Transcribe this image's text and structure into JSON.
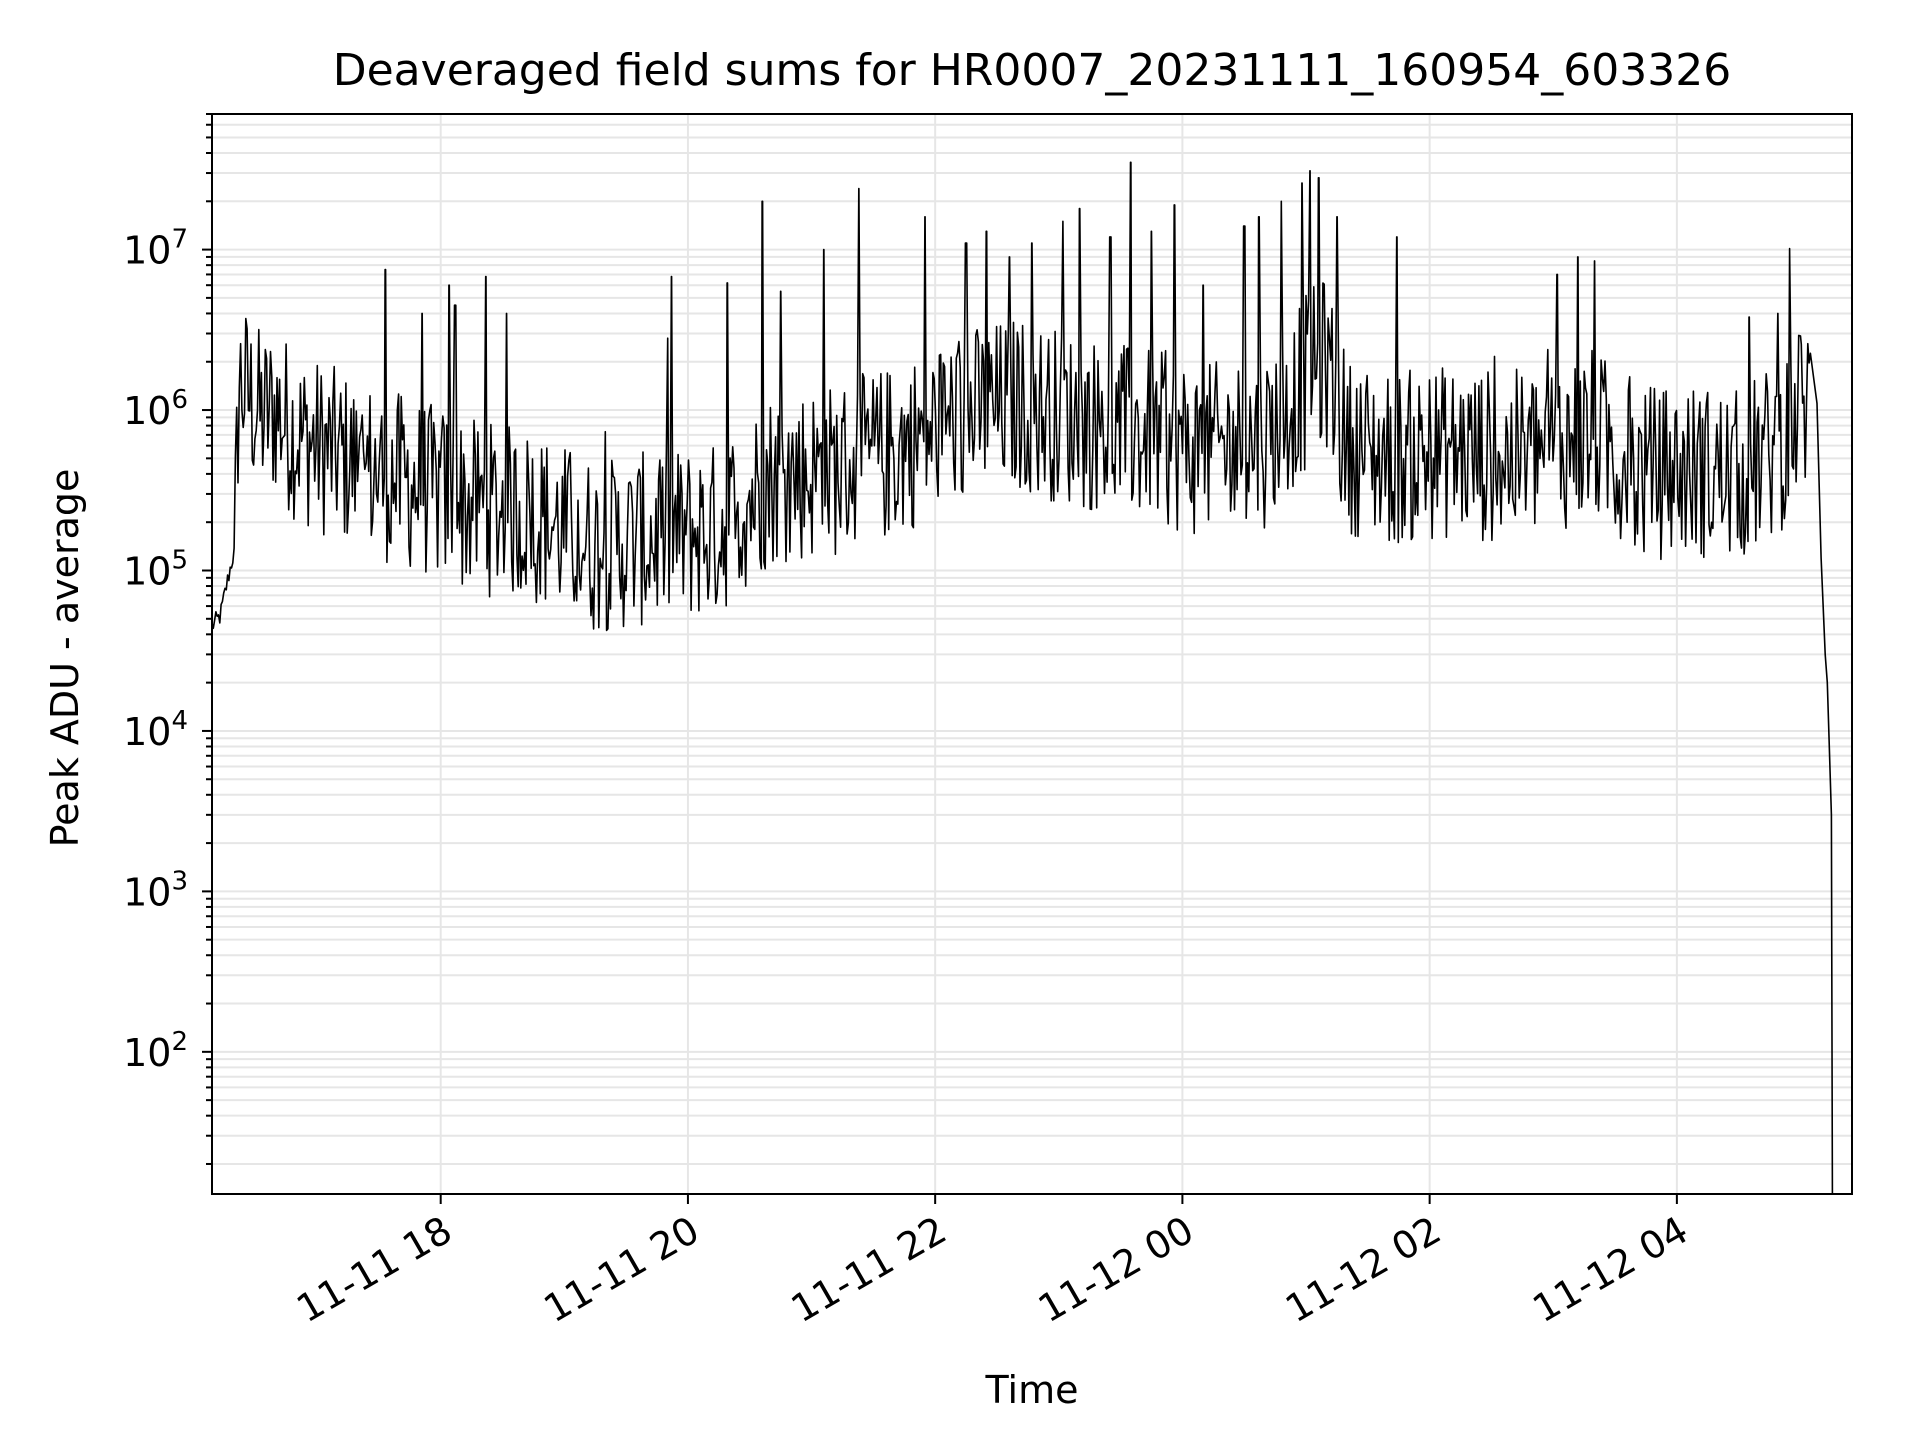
{
  "chart_data": {
    "type": "line",
    "title": "Deaveraged field sums for HR0007_20231111_160954_603326",
    "xlabel": "Time",
    "ylabel": "Peak ADU - average",
    "x_scale": "time",
    "y_scale": "log",
    "xlim": [
      "2023-11-11 16:09",
      "2023-11-12 05:25"
    ],
    "ylim": [
      13,
      70000000
    ],
    "x_ticks": [
      {
        "value": "2023-11-11 18:00",
        "label": "11-11 18"
      },
      {
        "value": "2023-11-11 20:00",
        "label": "11-11 20"
      },
      {
        "value": "2023-11-11 22:00",
        "label": "11-11 22"
      },
      {
        "value": "2023-11-12 00:00",
        "label": "11-12 00"
      },
      {
        "value": "2023-11-12 02:00",
        "label": "11-12 02"
      },
      {
        "value": "2023-11-12 04:00",
        "label": "11-12 04"
      }
    ],
    "y_ticks": [
      {
        "value": 100,
        "base": "10",
        "exp": "2"
      },
      {
        "value": 1000,
        "base": "10",
        "exp": "3"
      },
      {
        "value": 10000,
        "base": "10",
        "exp": "4"
      },
      {
        "value": 100000,
        "base": "10",
        "exp": "5"
      },
      {
        "value": 1000000,
        "base": "10",
        "exp": "6"
      },
      {
        "value": 10000000,
        "base": "10",
        "exp": "7"
      }
    ],
    "grid": true,
    "line_color": "#000000",
    "grid_color": "#e6e6e6",
    "series": [
      {
        "x": [
          "2023-11-11 16:09",
          "2023-11-11 16:13",
          "2023-11-11 16:16",
          "2023-11-11 16:19",
          "2023-11-11 16:20",
          "2023-11-11 16:22",
          "2023-11-11 16:27",
          "2023-11-11 16:33",
          "2023-11-11 16:40",
          "2023-11-11 16:50",
          "2023-11-11 17:00",
          "2023-11-11 17:20",
          "2023-11-11 17:45",
          "2023-11-11 18:15",
          "2023-11-11 18:45",
          "2023-11-11 19:15",
          "2023-11-11 19:45",
          "2023-11-11 20:15",
          "2023-11-11 20:40",
          "2023-11-11 21:10",
          "2023-11-11 21:40",
          "2023-11-11 22:10",
          "2023-11-11 22:40",
          "2023-11-11 23:10",
          "2023-11-11 23:40",
          "2023-11-12 00:10",
          "2023-11-12 00:40",
          "2023-11-12 01:00",
          "2023-11-12 01:10",
          "2023-11-12 01:20",
          "2023-11-12 01:40",
          "2023-11-12 02:10",
          "2023-11-12 02:40",
          "2023-11-12 03:10",
          "2023-11-12 03:20",
          "2023-11-12 03:40",
          "2023-11-12 04:10",
          "2023-11-12 04:30",
          "2023-11-12 04:50",
          "2023-11-12 05:00",
          "2023-11-12 05:05",
          "2023-11-12 05:08",
          "2023-11-12 05:10",
          "2023-11-12 05:12",
          "2023-11-12 05:13",
          "2023-11-12 05:14",
          "2023-11-12 05:15"
        ],
        "y": [
          45000,
          52000,
          80000,
          120000,
          130000,
          1500000,
          1200000,
          900000,
          1000000,
          700000,
          600000,
          450000,
          350000,
          250000,
          220000,
          140000,
          160000,
          180000,
          380000,
          420000,
          550000,
          900000,
          1100000,
          850000,
          700000,
          550000,
          650000,
          1500000,
          2000000,
          600000,
          500000,
          550000,
          500000,
          650000,
          700000,
          400000,
          420000,
          380000,
          600000,
          1000000,
          1200000,
          1100000,
          120000,
          30000,
          20000,
          8000,
          3000
        ]
      }
    ],
    "spikes": {
      "x": [
        "2023-11-11 17:33",
        "2023-11-11 17:51",
        "2023-11-11 18:04",
        "2023-11-11 18:07",
        "2023-11-11 18:22",
        "2023-11-11 18:32",
        "2023-11-11 19:52",
        "2023-11-11 20:19",
        "2023-11-11 20:36",
        "2023-11-11 20:45",
        "2023-11-11 21:06",
        "2023-11-11 21:23",
        "2023-11-11 21:55",
        "2023-11-11 22:15",
        "2023-11-11 22:25",
        "2023-11-11 22:36",
        "2023-11-11 22:47",
        "2023-11-11 23:02",
        "2023-11-11 23:10",
        "2023-11-11 23:25",
        "2023-11-11 23:35",
        "2023-11-11 23:45",
        "2023-11-11 23:56",
        "2023-11-12 00:10",
        "2023-11-12 00:30",
        "2023-11-12 00:37",
        "2023-11-12 00:48",
        "2023-11-12 00:58",
        "2023-11-12 01:02",
        "2023-11-12 01:06",
        "2023-11-12 01:15",
        "2023-11-12 01:44",
        "2023-11-12 03:02",
        "2023-11-12 03:12",
        "2023-11-12 03:20",
        "2023-11-12 04:35",
        "2023-11-12 04:49",
        "2023-11-12 05:00"
      ],
      "y": [
        7500000,
        4000000,
        6000000,
        4500000,
        6800000,
        4000000,
        6800000,
        6200000,
        20000000,
        5500000,
        10000000,
        24000000,
        16000000,
        11000000,
        13000000,
        9000000,
        11000000,
        15000000,
        18000000,
        12000000,
        35000000,
        13000000,
        19000000,
        6000000,
        14000000,
        16000000,
        20000000,
        26000000,
        31000000,
        28000000,
        16000000,
        12000000,
        7000000,
        9000000,
        8500000,
        3800000,
        4000000,
        2900000
      ]
    }
  }
}
